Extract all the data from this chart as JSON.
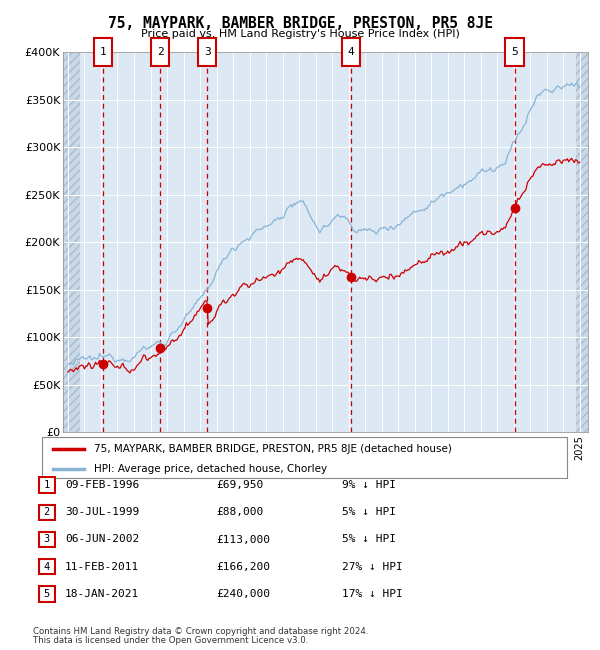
{
  "title": "75, MAYPARK, BAMBER BRIDGE, PRESTON, PR5 8JE",
  "subtitle": "Price paid vs. HM Land Registry's House Price Index (HPI)",
  "footer1": "Contains HM Land Registry data © Crown copyright and database right 2024.",
  "footer2": "This data is licensed under the Open Government Licence v3.0.",
  "legend_red": "75, MAYPARK, BAMBER BRIDGE, PRESTON, PR5 8JE (detached house)",
  "legend_blue": "HPI: Average price, detached house, Chorley",
  "sales": [
    {
      "num": 1,
      "date": "09-FEB-1996",
      "price": 69950,
      "price_str": "£69,950",
      "pct": "9%",
      "year": 1996.12
    },
    {
      "num": 2,
      "date": "30-JUL-1999",
      "price": 88000,
      "price_str": "£88,000",
      "pct": "5%",
      "year": 1999.58
    },
    {
      "num": 3,
      "date": "06-JUN-2002",
      "price": 113000,
      "price_str": "£113,000",
      "pct": "5%",
      "year": 2002.44
    },
    {
      "num": 4,
      "date": "11-FEB-2011",
      "price": 166200,
      "price_str": "£166,200",
      "pct": "27%",
      "year": 2011.12
    },
    {
      "num": 5,
      "date": "18-JAN-2021",
      "price": 240000,
      "price_str": "£240,000",
      "pct": "17%",
      "year": 2021.05
    }
  ],
  "ylim": [
    0,
    400000
  ],
  "yticks": [
    0,
    50000,
    100000,
    150000,
    200000,
    250000,
    300000,
    350000,
    400000
  ],
  "xlim_start": 1993.7,
  "xlim_end": 2025.5,
  "bg_color": "#dce9f5",
  "grid_color": "#ffffff",
  "red_color": "#cc0000",
  "blue_color": "#89b4d4",
  "vline_color": "#cc0000",
  "hatch_left_end": 1994.75,
  "hatch_right_start": 2024.75
}
